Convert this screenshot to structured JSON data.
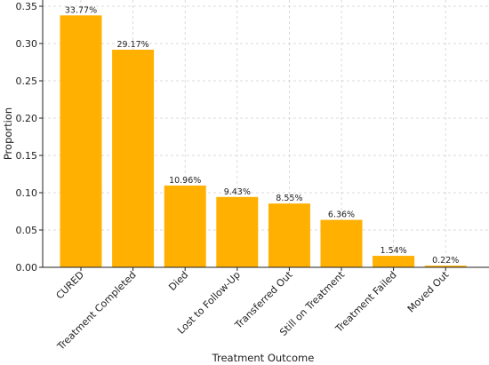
{
  "chart_data": {
    "type": "bar",
    "categories": [
      "CURED",
      "Treatment Completed",
      "Died",
      "Lost to Follow-Up",
      "Transferred Out",
      "Still on Treatment",
      "Treatment Failed",
      "Moved Out"
    ],
    "values": [
      0.3377,
      0.2917,
      0.1096,
      0.0943,
      0.0855,
      0.0636,
      0.0154,
      0.0022
    ],
    "data_labels": [
      "33.77%",
      "29.17%",
      "10.96%",
      "9.43%",
      "8.55%",
      "6.36%",
      "1.54%",
      "0.22%"
    ],
    "xlabel": "Treatment Outcome",
    "ylabel": "Proportion",
    "ylim": [
      0,
      0.35
    ],
    "yticks": [
      "0.00",
      "0.05",
      "0.10",
      "0.15",
      "0.20",
      "0.25",
      "0.30",
      "0.35"
    ],
    "grid": true,
    "bar_color": "#FFB000"
  }
}
